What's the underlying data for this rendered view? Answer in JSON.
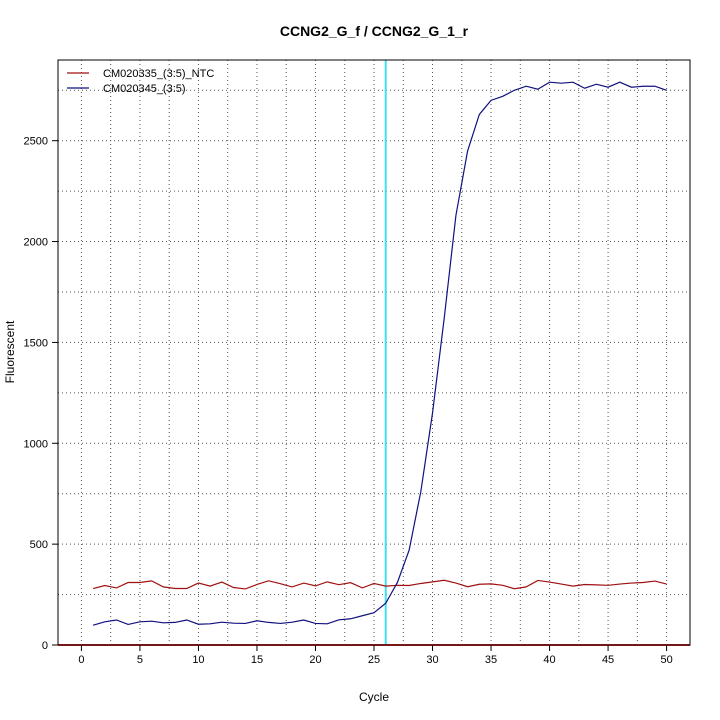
{
  "chart_data": {
    "type": "line",
    "title": "CCNG2_G_f / CCNG2_G_1_r",
    "xlabel": "Cycle",
    "ylabel": "Fluorescent",
    "xlim": [
      -2,
      52
    ],
    "ylim": [
      0,
      2900
    ],
    "x_ticks": [
      0,
      5,
      10,
      15,
      20,
      25,
      30,
      35,
      40,
      45,
      50
    ],
    "y_ticks": [
      0,
      500,
      1000,
      1500,
      2000,
      2500
    ],
    "grid": true,
    "legend_position": "top-left",
    "threshold": {
      "x": 26,
      "color": "#40e0f0"
    },
    "baseline": {
      "y": 0,
      "color": "#e83030"
    },
    "x": [
      1,
      2,
      3,
      4,
      5,
      6,
      7,
      8,
      9,
      10,
      11,
      12,
      13,
      14,
      15,
      16,
      17,
      18,
      19,
      20,
      21,
      22,
      23,
      24,
      25,
      26,
      27,
      28,
      29,
      30,
      31,
      32,
      33,
      34,
      35,
      36,
      37,
      38,
      39,
      40,
      41,
      42,
      43,
      44,
      45,
      46,
      47,
      48,
      49,
      50
    ],
    "series": [
      {
        "name": "CM020335_(3:5)_NTC",
        "color": "#a01010",
        "values": [
          280,
          295,
          283,
          310,
          310,
          318,
          288,
          280,
          280,
          307,
          292,
          312,
          285,
          278,
          300,
          318,
          304,
          288,
          307,
          293,
          313,
          299,
          309,
          283,
          305,
          292,
          296,
          295,
          305,
          313,
          321,
          307,
          289,
          301,
          303,
          296,
          279,
          288,
          320,
          312,
          302,
          292,
          300,
          298,
          296,
          302,
          307,
          310,
          317,
          302
        ]
      },
      {
        "name": "CM020345_(3:5)",
        "color": "#101080",
        "values": [
          98,
          115,
          124,
          102,
          115,
          118,
          110,
          112,
          124,
          103,
          105,
          113,
          108,
          107,
          120,
          112,
          107,
          113,
          124,
          107,
          105,
          125,
          130,
          145,
          160,
          207,
          310,
          470,
          760,
          1150,
          1620,
          2130,
          2450,
          2630,
          2700,
          2720,
          2750,
          2770,
          2755,
          2790,
          2785,
          2790,
          2760,
          2780,
          2765,
          2790,
          2765,
          2770,
          2770,
          2750
        ]
      }
    ]
  }
}
